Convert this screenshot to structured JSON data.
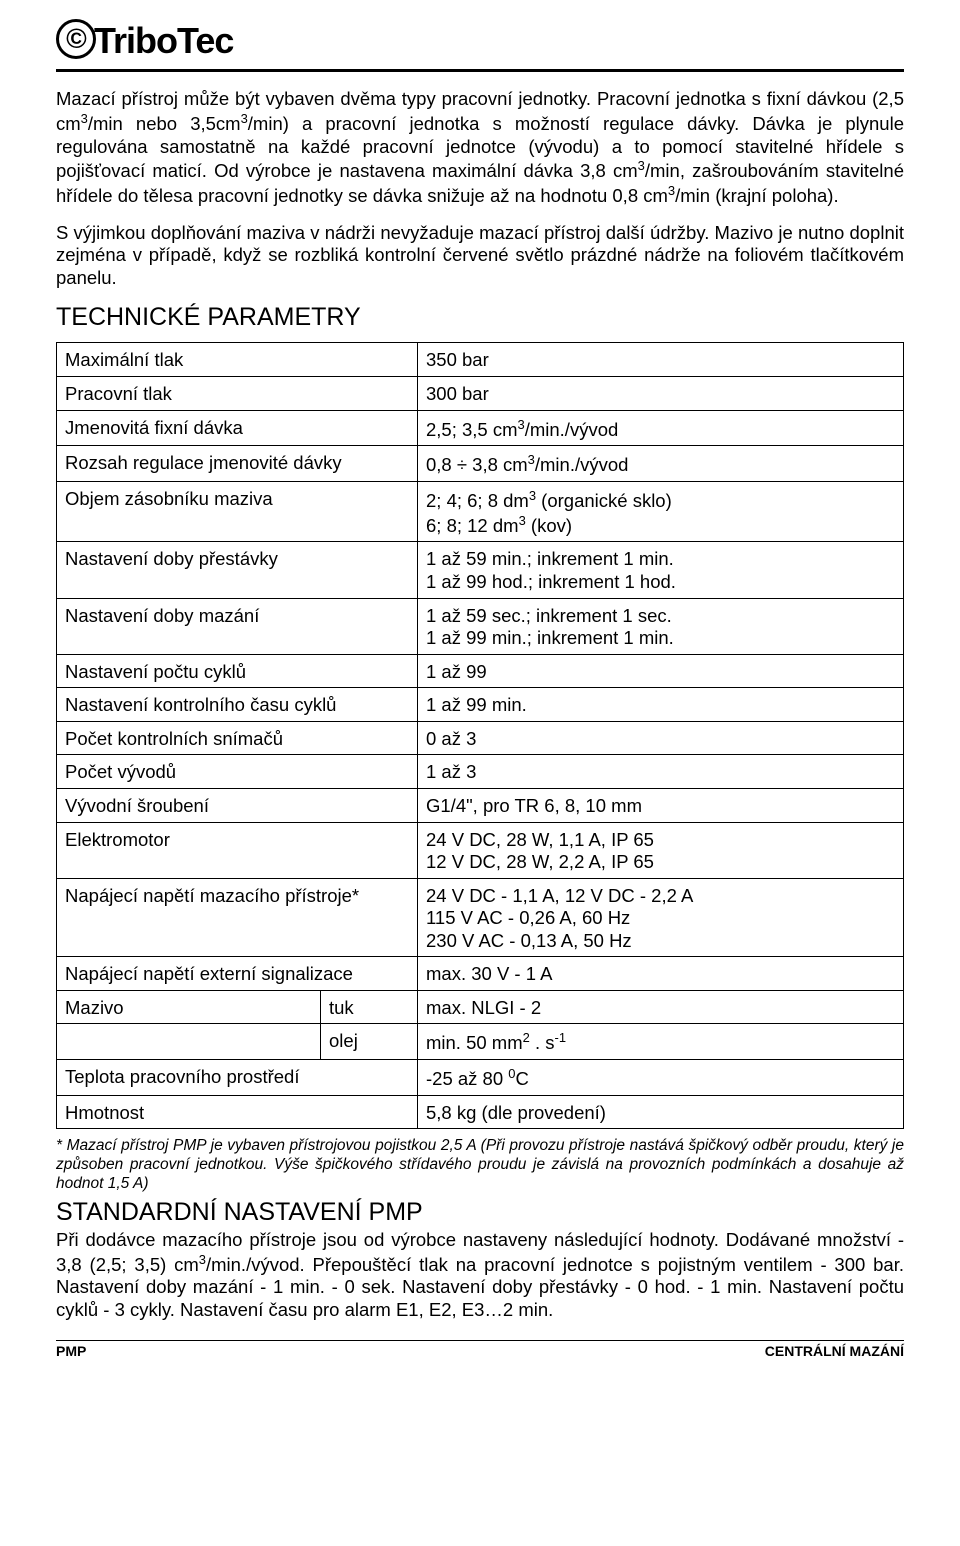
{
  "logo": {
    "mark": "©",
    "text": "TriboTec"
  },
  "paragraphs": {
    "p1": "Mazací přístroj může být vybaven dvěma typy pracovní jednotky. Pracovní jednotka s fixní dávkou (2,5 cm³/min nebo 3,5cm³/min) a pracovní jednotka s možností regulace dávky. Dávka je plynule regulována samostatně na každé pracovní jednotce (vývodu) a to pomocí stavitelné hřídele s pojišťovací maticí. Od výrobce je nastavena maximální dávka 3,8 cm³/min, zašroubováním stavitelné hřídele do tělesa pracovní jednotky se dávka snižuje až na hodnotu 0,8 cm³/min (krajní poloha).",
    "p2": "S výjimkou doplňování maziva v nádrži nevyžaduje mazací přístroj další údržby. Mazivo je nutno doplnit zejména v případě, když se rozbliká kontrolní červené světlo prázdné nádrže na foliovém tlačítkovém panelu."
  },
  "section_params_title": "TECHNICKÉ PARAMETRY",
  "table": [
    {
      "label": "Maximální tlak",
      "value": "350 bar"
    },
    {
      "label": "Pracovní tlak",
      "value": "300 bar"
    },
    {
      "label": "Jmenovitá fixní dávka",
      "value": "2,5; 3,5 cm³/min./vývod"
    },
    {
      "label": "Rozsah regulace jmenovité dávky",
      "value": "0,8 ÷ 3,8 cm³/min./vývod"
    },
    {
      "label": "Objem zásobníku maziva",
      "value": "2; 4; 6; 8 dm³ (organické sklo)\n6; 8; 12 dm³  (kov)"
    },
    {
      "label": "Nastavení doby přestávky",
      "value": "1 až 59 min.; inkrement 1 min.\n1 až 99 hod.; inkrement 1 hod."
    },
    {
      "label": "Nastavení doby mazání",
      "value": "1 až 59 sec.; inkrement 1 sec.\n1 až 99 min.; inkrement 1 min."
    },
    {
      "label": "Nastavení počtu cyklů",
      "value": "1 až 99"
    },
    {
      "label": "Nastavení kontrolního času cyklů",
      "value": "1 až 99 min."
    },
    {
      "label": "Počet kontrolních snímačů",
      "value": "0 až 3"
    },
    {
      "label": "Počet vývodů",
      "value": "1 až 3"
    },
    {
      "label": "Vývodní šroubení",
      "value": "G1/4\", pro TR 6, 8, 10 mm"
    },
    {
      "label": "Elektromotor",
      "value": "24 V DC, 28 W, 1,1 A, IP 65\n12 V DC, 28 W, 2,2 A, IP 65"
    },
    {
      "label": "Napájecí napětí mazacího přístroje*",
      "value": "24 V DC - 1,1 A,  12 V DC - 2,2 A\n115 V AC - 0,26 A, 60 Hz\n230 V AC - 0,13 A, 50 Hz"
    },
    {
      "label": "Napájecí napětí externí signalizace",
      "value": "max. 30 V - 1 A"
    }
  ],
  "mazivo_row": {
    "label": "Mazivo",
    "sub1": "tuk",
    "val1": "max. NLGI - 2",
    "sub2": "olej",
    "val2": "min. 50 mm² . s⁻¹"
  },
  "table_tail": [
    {
      "label": "Teplota pracovního prostředí",
      "value": "-25 až 80 ⁰C"
    },
    {
      "label": "Hmotnost",
      "value": "5,8 kg (dle provedení)"
    }
  ],
  "footnote": "* Mazací přístroj PMP je vybaven přístrojovou pojistkou 2,5 A (Při provozu přístroje nastává špičkový odběr proudu, který je způsoben pracovní jednotkou. Výše  špičkového střídavého proudu je závislá na provozních podmínkách a dosahuje až hodnot 1,5 A)",
  "section_std_title": "STANDARDNÍ NASTAVENÍ PMP",
  "std_para": "Při dodávce mazacího přístroje jsou od výrobce nastaveny následující hodnoty. Dodávané množství - 3,8 (2,5; 3,5) cm³/min./vývod. Přepouštěcí tlak na pracovní jednotce s pojistným ventilem - 300 bar. Nastavení doby mazání - 1 min. - 0 sek. Nastavení doby přestávky - 0 hod. - 1 min. Nastavení počtu cyklů - 3 cykly. Nastavení času pro alarm E1, E2, E3…2 min.",
  "footer": {
    "left": "PMP",
    "right": "CENTRÁLNÍ MAZÁNÍ"
  },
  "layout": {
    "col1_width": 327,
    "col2_width": 80
  }
}
